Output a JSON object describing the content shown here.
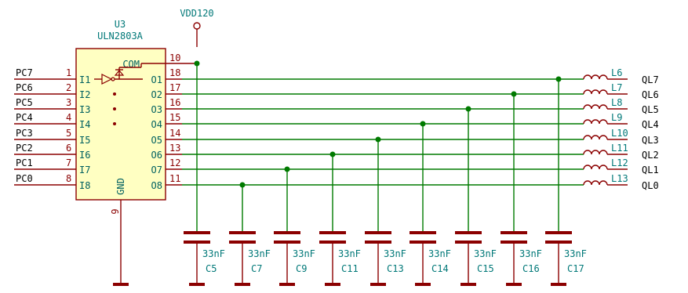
{
  "power": {
    "label": "VDD120"
  },
  "ic": {
    "ref": "U3",
    "value": "ULN2803A",
    "com_label": "COM",
    "com_pin": "10",
    "gnd_label": "GND",
    "gnd_pin": "9",
    "inputs": [
      {
        "name": "I1",
        "pin": "1"
      },
      {
        "name": "I2",
        "pin": "2"
      },
      {
        "name": "I3",
        "pin": "3"
      },
      {
        "name": "I4",
        "pin": "4"
      },
      {
        "name": "I5",
        "pin": "5"
      },
      {
        "name": "I6",
        "pin": "6"
      },
      {
        "name": "I7",
        "pin": "7"
      },
      {
        "name": "I8",
        "pin": "8"
      }
    ],
    "outputs": [
      {
        "name": "O1",
        "pin": "18"
      },
      {
        "name": "O2",
        "pin": "17"
      },
      {
        "name": "O3",
        "pin": "16"
      },
      {
        "name": "O4",
        "pin": "15"
      },
      {
        "name": "O5",
        "pin": "14"
      },
      {
        "name": "O6",
        "pin": "13"
      },
      {
        "name": "O7",
        "pin": "12"
      },
      {
        "name": "O8",
        "pin": "11"
      }
    ]
  },
  "input_nets": [
    "PC7",
    "PC6",
    "PC5",
    "PC4",
    "PC3",
    "PC2",
    "PC1",
    "PC0"
  ],
  "inductors": [
    "L6",
    "L7",
    "L8",
    "L9",
    "L10",
    "L11",
    "L12",
    "L13"
  ],
  "output_nets": [
    "QL7",
    "QL6",
    "QL5",
    "QL4",
    "QL3",
    "QL2",
    "QL1",
    "QL0"
  ],
  "capacitors": [
    {
      "ref": "C5",
      "value": "33nF"
    },
    {
      "ref": "C7",
      "value": "33nF"
    },
    {
      "ref": "C9",
      "value": "33nF"
    },
    {
      "ref": "C11",
      "value": "33nF"
    },
    {
      "ref": "C13",
      "value": "33nF"
    },
    {
      "ref": "C14",
      "value": "33nF"
    },
    {
      "ref": "C15",
      "value": "33nF"
    },
    {
      "ref": "C16",
      "value": "33nF"
    },
    {
      "ref": "C17",
      "value": "33nF"
    }
  ]
}
